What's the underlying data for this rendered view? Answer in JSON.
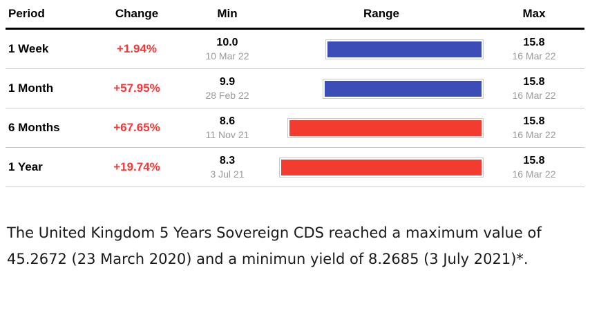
{
  "table": {
    "headers": {
      "period": "Period",
      "change": "Change",
      "min": "Min",
      "range": "Range",
      "max": "Max"
    },
    "range_scale": {
      "min": 8.3,
      "max": 15.8
    }
  },
  "chart_data": {
    "type": "table",
    "columns": [
      "Period",
      "Change",
      "Min",
      "Range",
      "Max"
    ],
    "range_axis": [
      8.3,
      15.8
    ],
    "rows": [
      {
        "period": "1 Week",
        "change": "+1.94%",
        "change_pct": 1.94,
        "min": 10.0,
        "min_label": "10.0",
        "min_date": "10 Mar 22",
        "max": 15.8,
        "max_label": "15.8",
        "max_date": "16 Mar 22",
        "bar_color": "#3d4db7"
      },
      {
        "period": "1 Month",
        "change": "+57.95%",
        "change_pct": 57.95,
        "min": 9.9,
        "min_label": "9.9",
        "min_date": "28 Feb 22",
        "max": 15.8,
        "max_label": "15.8",
        "max_date": "16 Mar 22",
        "bar_color": "#3d4db7"
      },
      {
        "period": "6 Months",
        "change": "+67.65%",
        "change_pct": 67.65,
        "min": 8.6,
        "min_label": "8.6",
        "min_date": "11 Nov 21",
        "max": 15.8,
        "max_label": "15.8",
        "max_date": "16 Mar 22",
        "bar_color": "#f33b2f"
      },
      {
        "period": "1 Year",
        "change": "+19.74%",
        "change_pct": 19.74,
        "min": 8.3,
        "min_label": "8.3",
        "min_date": "3 Jul 21",
        "max": 15.8,
        "max_label": "15.8",
        "max_date": "16 Mar 22",
        "bar_color": "#f33b2f"
      }
    ]
  },
  "summary": {
    "text": "The United Kingdom 5 Years Sovereign CDS reached a maximum value of 45.2672 (23 March 2020) and a minimun yield of 8.2685 (3 July 2021)*."
  },
  "colors": {
    "change_text": "#f73737",
    "bar_blue": "#3d4db7",
    "bar_red": "#f33b2f",
    "date_text": "#999999",
    "separator": "#cccccc",
    "header_rule": "#000000"
  }
}
